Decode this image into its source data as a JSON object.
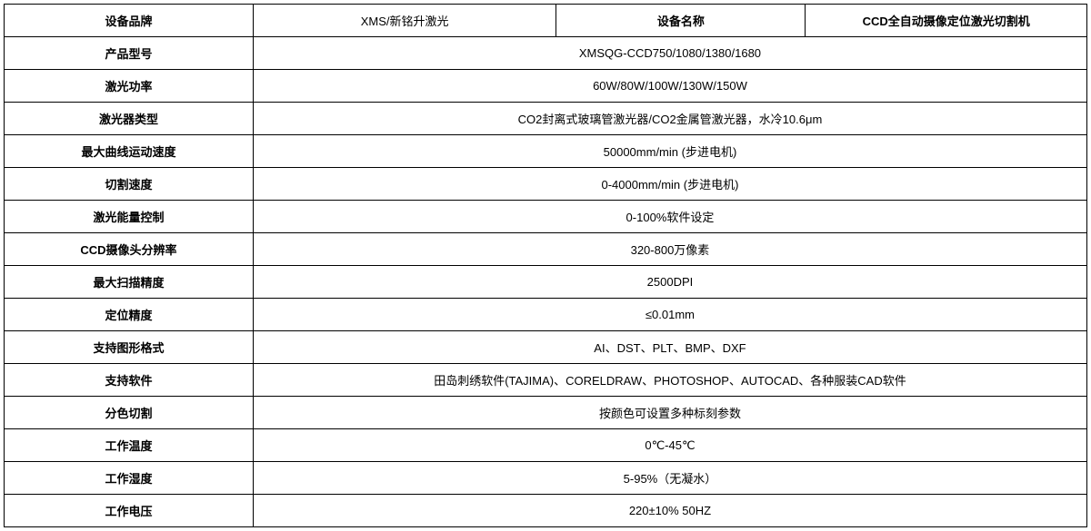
{
  "header": {
    "brand_label": "设备品牌",
    "brand_value": "XMS/新铭升激光",
    "name_label": "设备名称",
    "name_value": "CCD全自动摄像定位激光切割机"
  },
  "rows": [
    {
      "label": "产品型号",
      "value": "XMSQG-CCD750/1080/1380/1680"
    },
    {
      "label": "激光功率",
      "value": "60W/80W/100W/130W/150W"
    },
    {
      "label": "激光器类型",
      "value": "CO2封离式玻璃管激光器/CO2金属管激光器，水冷10.6μm"
    },
    {
      "label": "最大曲线运动速度",
      "value": "50000mm/min (步进电机)"
    },
    {
      "label": "切割速度",
      "value": "0-4000mm/min (步进电机)"
    },
    {
      "label": "激光能量控制",
      "value": "0-100%软件设定"
    },
    {
      "label": "CCD摄像头分辨率",
      "value": "320-800万像素"
    },
    {
      "label": "最大扫描精度",
      "value": "2500DPI"
    },
    {
      "label": "定位精度",
      "value": "≤0.01mm"
    },
    {
      "label": "支持图形格式",
      "value": "AI、DST、PLT、BMP、DXF"
    },
    {
      "label": "支持软件",
      "value": "田岛刺绣软件(TAJIMA)、CORELDRAW、PHOTOSHOP、AUTOCAD、各种服装CAD软件"
    },
    {
      "label": "分色切割",
      "value": "按颜色可设置多种标刻参数"
    },
    {
      "label": "工作温度",
      "value": "0℃-45℃"
    },
    {
      "label": "工作湿度",
      "value": "5-95%（无凝水）"
    },
    {
      "label": "工作电压",
      "value": "220±10% 50HZ"
    }
  ]
}
